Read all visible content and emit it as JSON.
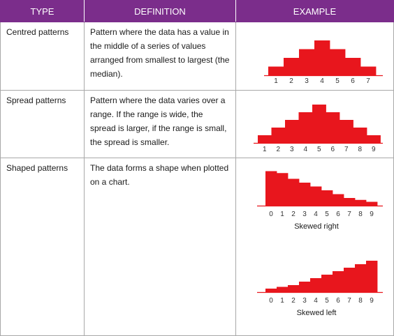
{
  "header": {
    "type": "TYPE",
    "definition": "DEFINITION",
    "example": "EXAMPLE"
  },
  "rows": [
    {
      "type": "Centred patterns",
      "definition": "Pattern where the data has a value in the middle of a series of values arranged from smallest to largest (the median)."
    },
    {
      "type": "Spread patterns",
      "definition": "Pattern where the data varies over a range. If the range is wide, the spread is larger, if the range is small, the spread is smaller."
    },
    {
      "type": "Shaped patterns",
      "definition": "The data forms a shape when plotted on a chart."
    }
  ],
  "colors": {
    "header_bg": "#7b2d8b",
    "bar": "#e8161d"
  },
  "chart_data": [
    {
      "type": "bar",
      "categories": [
        "1",
        "2",
        "3",
        "4",
        "5",
        "6",
        "7"
      ],
      "values": [
        1,
        2,
        3,
        4,
        3,
        2,
        1
      ],
      "title": ""
    },
    {
      "type": "bar",
      "categories": [
        "1",
        "2",
        "3",
        "4",
        "5",
        "6",
        "7",
        "8",
        "9"
      ],
      "values": [
        1,
        2,
        3,
        4,
        5,
        4,
        3,
        2,
        1
      ],
      "title": ""
    },
    {
      "type": "bar",
      "categories": [
        "0",
        "1",
        "2",
        "3",
        "4",
        "5",
        "6",
        "7",
        "8",
        "9"
      ],
      "values": [
        9,
        8.5,
        7,
        6,
        5,
        4,
        3,
        2,
        1.5,
        1
      ],
      "title": "Skewed right"
    },
    {
      "type": "bar",
      "categories": [
        "0",
        "1",
        "2",
        "3",
        "4",
        "5",
        "6",
        "7",
        "8",
        "9"
      ],
      "values": [
        1,
        1.5,
        2,
        3,
        4,
        5,
        6,
        7,
        8,
        9
      ],
      "title": "Skewed left"
    }
  ]
}
